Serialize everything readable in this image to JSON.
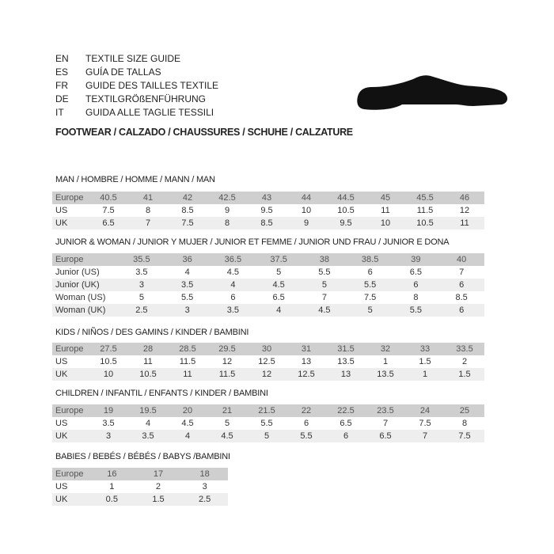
{
  "languages": [
    {
      "code": "EN",
      "title": "TEXTILE SIZE GUIDE"
    },
    {
      "code": "ES",
      "title": "GUÍA DE TALLAS"
    },
    {
      "code": "FR",
      "title": "GUIDE DES TAILLES TEXTILE"
    },
    {
      "code": "DE",
      "title": "TEXTILGRÖßENFÜHRUNG"
    },
    {
      "code": "IT",
      "title": "GUIDA ALLE TAGLIE TESSILI"
    }
  ],
  "footwear": "FOOTWEAR / CALZADO / CHAUSSURES / SCHUHE / CALZATURE",
  "icon": "shoe-icon",
  "sections": [
    {
      "title": "MAN / HOMBRE / HOMME / MANN / MAN",
      "rows": [
        {
          "label": "Europe",
          "values": [
            "40.5",
            "41",
            "42",
            "42.5",
            "43",
            "44",
            "44.5",
            "45",
            "45.5",
            "46"
          ]
        },
        {
          "label": "US",
          "values": [
            "7.5",
            "8",
            "8.5",
            "9",
            "9.5",
            "10",
            "10.5",
            "11",
            "11.5",
            "12"
          ]
        },
        {
          "label": "UK",
          "values": [
            "6.5",
            "7",
            "7.5",
            "8",
            "8.5",
            "9",
            "9.5",
            "10",
            "10.5",
            "11"
          ]
        }
      ]
    },
    {
      "title": "JUNIOR & WOMAN / JUNIOR Y MUJER / JUNIOR ET FEMME / JUNIOR UND FRAU / JUNIOR E DONA",
      "rows": [
        {
          "label": "Europe",
          "values": [
            "35.5",
            "36",
            "36.5",
            "37.5",
            "38",
            "38.5",
            "39",
            "40"
          ]
        },
        {
          "label": "Junior (US)",
          "values": [
            "3.5",
            "4",
            "4.5",
            "5",
            "5.5",
            "6",
            "6.5",
            "7"
          ]
        },
        {
          "label": "Junior (UK)",
          "values": [
            "3",
            "3.5",
            "4",
            "4.5",
            "5",
            "5.5",
            "6",
            "6"
          ]
        },
        {
          "label": "Woman (US)",
          "values": [
            "5",
            "5.5",
            "6",
            "6.5",
            "7",
            "7.5",
            "8",
            "8.5"
          ]
        },
        {
          "label": "Woman (UK)",
          "values": [
            "2.5",
            "3",
            "3.5",
            "4",
            "4.5",
            "5",
            "5.5",
            "6"
          ]
        }
      ]
    },
    {
      "title": "KIDS / NIÑOS / DES GAMINS / KINDER / BAMBINI",
      "rows": [
        {
          "label": "Europe",
          "values": [
            "27.5",
            "28",
            "28.5",
            "29.5",
            "30",
            "31",
            "31.5",
            "32",
            "33",
            "33.5"
          ]
        },
        {
          "label": "US",
          "values": [
            "10.5",
            "11",
            "11.5",
            "12",
            "12.5",
            "13",
            "13.5",
            "1",
            "1.5",
            "2"
          ]
        },
        {
          "label": "UK",
          "values": [
            "10",
            "10.5",
            "11",
            "11.5",
            "12",
            "12.5",
            "13",
            "13.5",
            "1",
            "1.5"
          ]
        }
      ]
    },
    {
      "title": "CHILDREN / INFANTIL / ENFANTS / KINDER / BAMBINI",
      "rows": [
        {
          "label": "Europe",
          "values": [
            "19",
            "19.5",
            "20",
            "21",
            "21.5",
            "22",
            "22.5",
            "23.5",
            "24",
            "25"
          ]
        },
        {
          "label": "US",
          "values": [
            "3.5",
            "4",
            "4.5",
            "5",
            "5.5",
            "6",
            "6.5",
            "7",
            "7.5",
            "8"
          ]
        },
        {
          "label": "UK",
          "values": [
            "3",
            "3.5",
            "4",
            "4.5",
            "5",
            "5.5",
            "6",
            "6.5",
            "7",
            "7.5"
          ]
        }
      ]
    },
    {
      "title": "BABIES  / BEBÉS / BÉBÉS / BABYS /BAMBINI",
      "rows": [
        {
          "label": "Europe",
          "values": [
            "16",
            "17",
            "18"
          ]
        },
        {
          "label": "US",
          "values": [
            "1",
            "2",
            "3"
          ]
        },
        {
          "label": "UK",
          "values": [
            "0.5",
            "1.5",
            "2.5"
          ]
        }
      ]
    }
  ]
}
